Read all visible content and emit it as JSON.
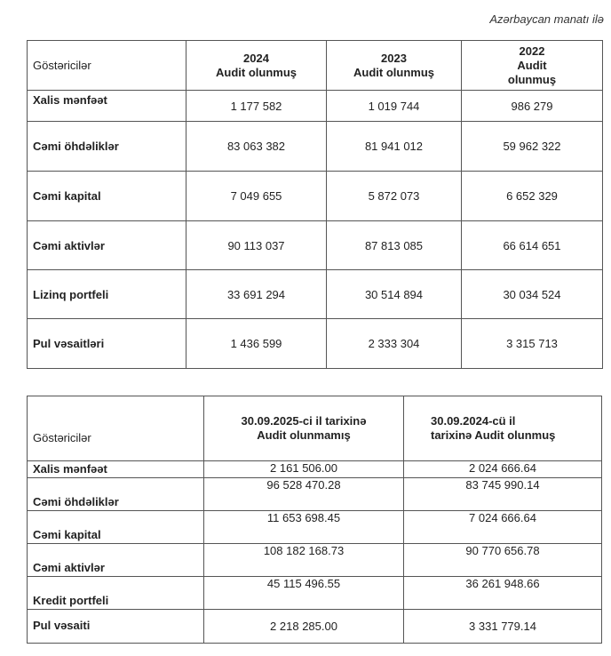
{
  "unit_note": "Azərbaycan manatı ilə",
  "table_annual": {
    "headers": [
      {
        "label": "Göstəricilər"
      },
      {
        "year": "2024",
        "status": "Audit olunmuş"
      },
      {
        "year": "2023",
        "status": "Audit olunmuş"
      },
      {
        "year": "2022",
        "status": "Audit olunmuş"
      }
    ],
    "rows": [
      {
        "label": "Xalis mənfəət",
        "values": [
          "1 177 582",
          "1 019 744",
          "986 279"
        ]
      },
      {
        "label": "Cəmi öhdəliklər",
        "values": [
          "83 063 382",
          "81 941 012",
          "59 962 322"
        ]
      },
      {
        "label": "Cəmi kapital",
        "values": [
          "7 049 655",
          "5 872 073",
          "6 652 329"
        ]
      },
      {
        "label": "Cəmi aktivlər",
        "values": [
          "90 113 037",
          "87 813 085",
          "66 614 651"
        ]
      },
      {
        "label": "Lizinq portfeli",
        "values": [
          "33 691 294",
          "30 514 894",
          "30 034 524"
        ]
      },
      {
        "label": "Pul vəsaitləri",
        "values": [
          "1 436 599",
          "2 333 304",
          "3 315 713"
        ]
      }
    ]
  },
  "table_interim": {
    "headers": [
      "Göstəricilər",
      "30.09.2025-ci il tarixinə Audit olunmamış",
      "30.09.2024-cü il tarixinə Audit olunmuş"
    ],
    "rows": [
      {
        "label": "Xalis mənfəət",
        "values": [
          "2 161 506.00",
          "2 024 666.64"
        ]
      },
      {
        "label": "Cəmi öhdəliklər",
        "values": [
          "96 528 470.28",
          "83 745 990.14"
        ]
      },
      {
        "label": "Cəmi kapital",
        "values": [
          "11 653 698.45",
          "7 024 666.64"
        ]
      },
      {
        "label": "Cəmi aktivlər",
        "values": [
          "108 182 168.73",
          "90 770 656.78"
        ]
      },
      {
        "label": "Kredit portfeli",
        "values": [
          "45 115 496.55",
          "36 261 948.66"
        ]
      },
      {
        "label": "Pul vəsaiti",
        "values": [
          "2 218 285.00",
          "3 331 779.14"
        ]
      }
    ]
  }
}
